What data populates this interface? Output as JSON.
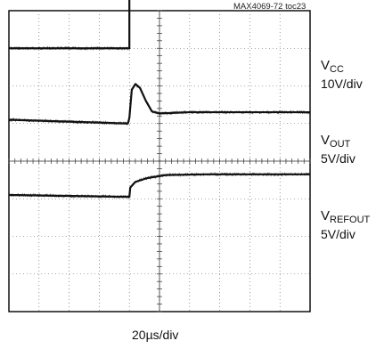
{
  "figure_id": "MAX4069-72 toc23",
  "chart_data": {
    "type": "line",
    "time_base": "20µs/div",
    "divisions": {
      "x": 10,
      "y": 8
    },
    "grid": true,
    "step_at_div": 4.0,
    "channels": [
      {
        "name_main": "V",
        "name_sub": "CC",
        "scale": "10V/div",
        "color": "#111111",
        "points": [
          [
            0,
            7.0
          ],
          [
            4.0,
            7.0
          ],
          [
            4.0,
            8.4
          ],
          [
            10,
            8.4
          ]
        ]
      },
      {
        "name_main": "V",
        "name_sub": "OUT",
        "scale": "5V/div",
        "color": "#111111",
        "points": [
          [
            0,
            5.1
          ],
          [
            3.95,
            5.0
          ],
          [
            4.0,
            5.15
          ],
          [
            4.08,
            5.9
          ],
          [
            4.2,
            6.05
          ],
          [
            4.35,
            5.95
          ],
          [
            4.55,
            5.6
          ],
          [
            4.75,
            5.32
          ],
          [
            5.0,
            5.27
          ],
          [
            6.0,
            5.3
          ],
          [
            10,
            5.3
          ]
        ]
      },
      {
        "name_main": "V",
        "name_sub": "REFOUT",
        "scale": "5V/div",
        "color": "#111111",
        "points": [
          [
            0,
            3.1
          ],
          [
            4.0,
            3.05
          ],
          [
            4.03,
            3.3
          ],
          [
            4.2,
            3.45
          ],
          [
            4.6,
            3.55
          ],
          [
            5.2,
            3.63
          ],
          [
            6.5,
            3.65
          ],
          [
            10,
            3.65
          ]
        ]
      }
    ]
  }
}
